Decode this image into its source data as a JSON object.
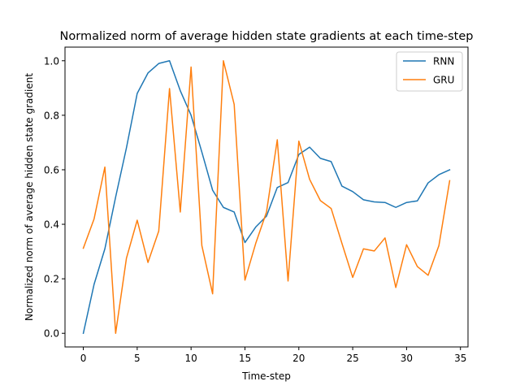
{
  "chart_data": {
    "type": "line",
    "title": "Normalized norm of average hidden state gradients at each time-step",
    "xlabel": "Time-step",
    "ylabel": "Normalized norm of average hidden state gradient",
    "xlim": [
      -1.7,
      35.7
    ],
    "ylim": [
      -0.05,
      1.05
    ],
    "xticks": [
      0,
      5,
      10,
      15,
      20,
      25,
      30,
      35
    ],
    "yticks": [
      0.0,
      0.2,
      0.4,
      0.6,
      0.8,
      1.0
    ],
    "xtick_labels": [
      "0",
      "5",
      "10",
      "15",
      "20",
      "25",
      "30",
      "35"
    ],
    "ytick_labels": [
      "0.0",
      "0.2",
      "0.4",
      "0.6",
      "0.8",
      "1.0"
    ],
    "grid": false,
    "legend_position": "top-right",
    "x": [
      0,
      1,
      2,
      3,
      4,
      5,
      6,
      7,
      8,
      9,
      10,
      11,
      12,
      13,
      14,
      15,
      16,
      17,
      18,
      19,
      20,
      21,
      22,
      23,
      24,
      25,
      26,
      27,
      28,
      29,
      30,
      31,
      32,
      33,
      34
    ],
    "series": [
      {
        "name": "RNN",
        "color": "#1f77b4",
        "values": [
          0.0,
          0.18,
          0.31,
          0.5,
          0.68,
          0.88,
          0.955,
          0.99,
          1.0,
          0.89,
          0.8,
          0.665,
          0.525,
          0.462,
          0.445,
          0.333,
          0.39,
          0.43,
          0.535,
          0.553,
          0.656,
          0.683,
          0.642,
          0.63,
          0.54,
          0.52,
          0.49,
          0.482,
          0.48,
          0.462,
          0.48,
          0.486,
          0.552,
          0.582,
          0.6
        ]
      },
      {
        "name": "GRU",
        "color": "#ff7f0e",
        "values": [
          0.312,
          0.42,
          0.61,
          0.0,
          0.275,
          0.415,
          0.26,
          0.375,
          0.898,
          0.445,
          0.977,
          0.322,
          0.145,
          1.0,
          0.84,
          0.195,
          0.33,
          0.445,
          0.71,
          0.192,
          0.705,
          0.565,
          0.487,
          0.458,
          0.33,
          0.205,
          0.31,
          0.302,
          0.35,
          0.168,
          0.325,
          0.245,
          0.213,
          0.322,
          0.56
        ]
      }
    ]
  }
}
